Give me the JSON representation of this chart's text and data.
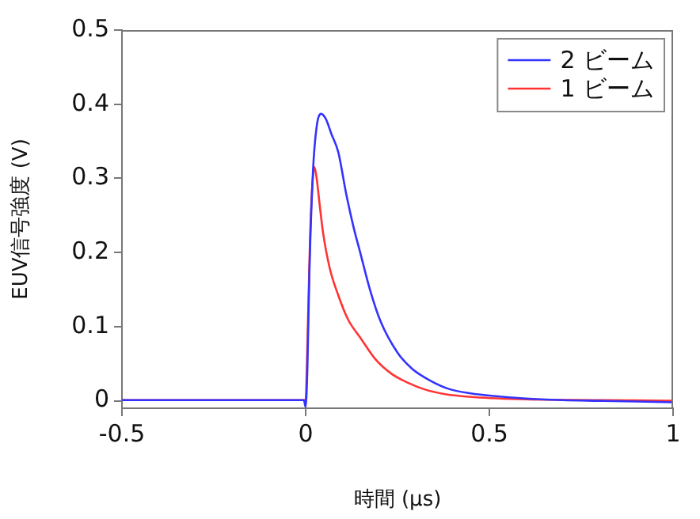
{
  "chart_data": {
    "type": "line",
    "xlabel": "時間 (μs)",
    "ylabel": "EUV信号強度 (V)",
    "xlim": [
      -0.5,
      1
    ],
    "xticks": [
      -0.5,
      0,
      0.5,
      1
    ],
    "ylim": [
      -0.01,
      0.5
    ],
    "yticks": [
      0,
      0.1,
      0.2,
      0.3,
      0.4,
      0.5
    ],
    "grid": false,
    "legend": "top right",
    "marker": "none",
    "line_style": "solid",
    "series": [
      {
        "name": "2 ビーム",
        "color": "#3333ff",
        "x": [
          -0.5,
          -0.005,
          0,
          0.005,
          0.01,
          0.02,
          0.03,
          0.042,
          0.055,
          0.07,
          0.089,
          0.11,
          0.13,
          0.149,
          0.175,
          0.204,
          0.25,
          0.29,
          0.34,
          0.39,
          0.45,
          0.5,
          0.6,
          0.7,
          0.8,
          1
        ],
        "values": [
          0.001,
          0.001,
          -0.008,
          0.05,
          0.17,
          0.31,
          0.37,
          0.387,
          0.38,
          0.36,
          0.335,
          0.28,
          0.235,
          0.199,
          0.15,
          0.107,
          0.065,
          0.043,
          0.027,
          0.016,
          0.01,
          0.007,
          0.003,
          0.001,
          0,
          -0.002
        ]
      },
      {
        "name": "1 ビーム",
        "color": "#ff3333",
        "x": [
          -0.5,
          -0.003,
          0,
          0.005,
          0.012,
          0.018,
          0.024,
          0.03,
          0.038,
          0.047,
          0.065,
          0.089,
          0.115,
          0.149,
          0.19,
          0.235,
          0.28,
          0.32,
          0.38,
          0.46,
          0.6,
          0.8,
          1
        ],
        "values": [
          0.001,
          0.001,
          0.002,
          0.08,
          0.22,
          0.29,
          0.315,
          0.3,
          0.265,
          0.228,
          0.18,
          0.142,
          0.11,
          0.085,
          0.056,
          0.036,
          0.024,
          0.016,
          0.009,
          0.005,
          0.002,
          0.001,
          0
        ]
      }
    ]
  }
}
